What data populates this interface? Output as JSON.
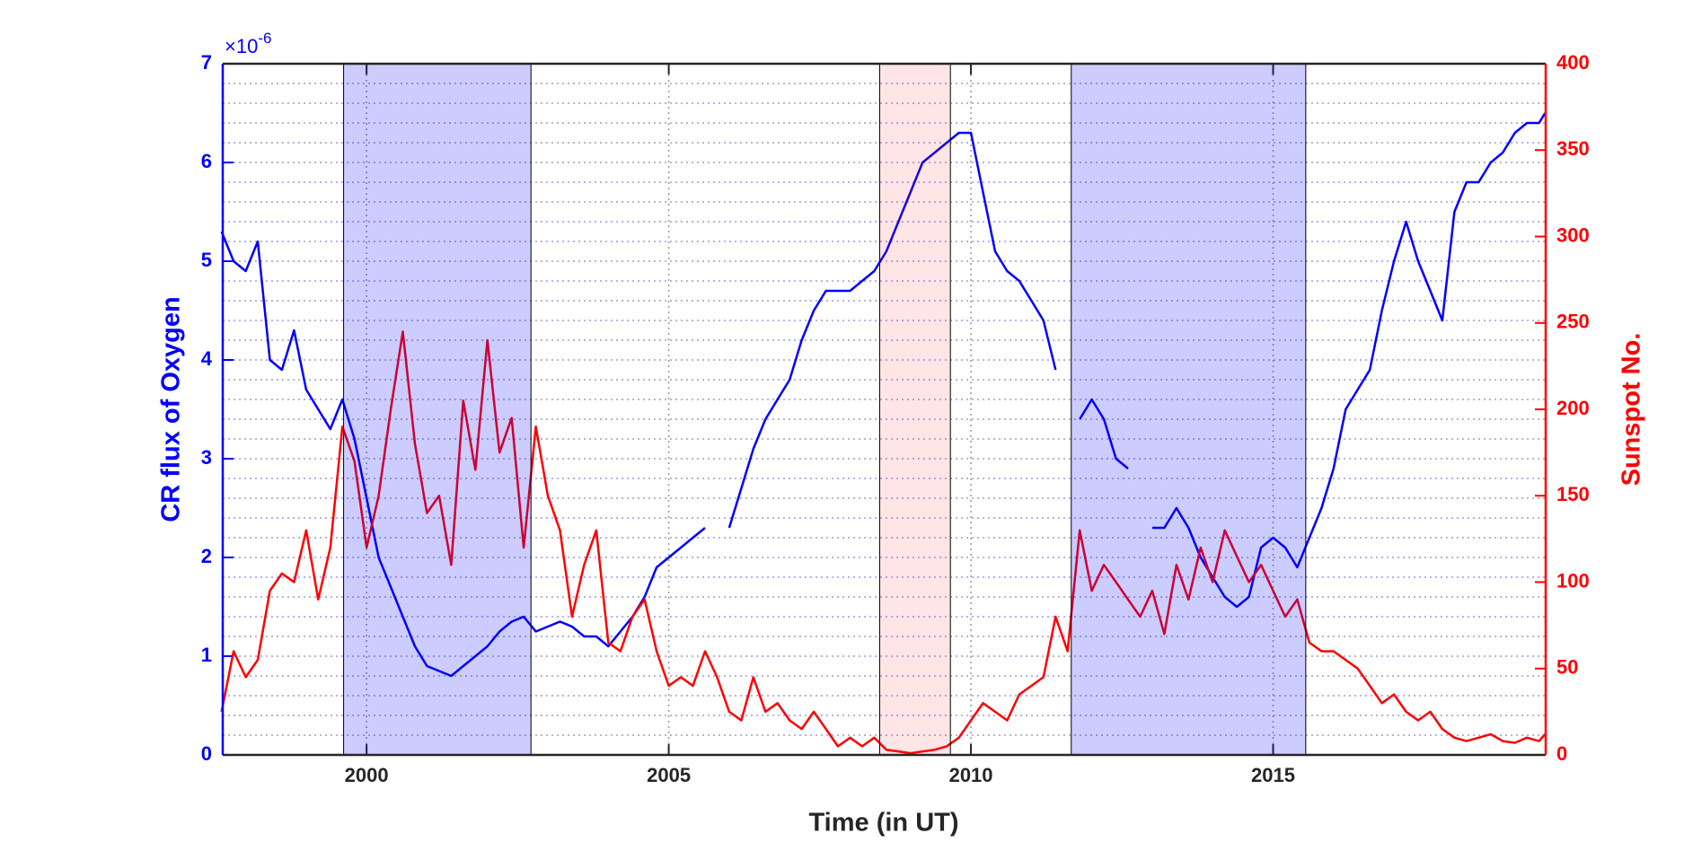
{
  "chart_data": {
    "type": "line",
    "xlabel": "Time (in UT)",
    "ylabel": "CR flux of Oxygen",
    "y2label": "Sunspot No.",
    "y_exponent": {
      "base": "×10",
      "power": "-6"
    },
    "xlim": [
      1997.62,
      2019.51
    ],
    "xticks": [
      2000,
      2005,
      2010,
      2015
    ],
    "ylim": [
      0,
      7
    ],
    "yticks": [
      0,
      1,
      2,
      3,
      4,
      5,
      6,
      7
    ],
    "y2lim": [
      0,
      400
    ],
    "y2ticks": [
      0,
      50,
      100,
      150,
      200,
      250,
      300,
      350,
      400
    ],
    "grid": true,
    "minor_grid": true,
    "shaded_regions": [
      {
        "start": 1999.62,
        "end": 2002.72,
        "color": "#0000ff"
      },
      {
        "start": 2008.49,
        "end": 2009.66,
        "color": "#ff0000"
      },
      {
        "start": 2011.66,
        "end": 2015.54,
        "color": "#0000ff"
      }
    ],
    "x": [
      1997.6,
      1997.8,
      1998.0,
      1998.2,
      1998.4,
      1998.6,
      1998.8,
      1999.0,
      1999.2,
      1999.4,
      1999.6,
      1999.8,
      2000.0,
      2000.2,
      2000.4,
      2000.6,
      2000.8,
      2001.0,
      2001.2,
      2001.4,
      2001.6,
      2001.8,
      2002.0,
      2002.2,
      2002.4,
      2002.6,
      2002.8,
      2003.0,
      2003.2,
      2003.4,
      2003.6,
      2003.8,
      2004.0,
      2004.2,
      2004.4,
      2004.6,
      2004.8,
      2005.0,
      2005.2,
      2005.4,
      2005.6,
      2005.8,
      2006.0,
      2006.2,
      2006.4,
      2006.6,
      2006.8,
      2007.0,
      2007.2,
      2007.4,
      2007.6,
      2007.8,
      2008.0,
      2008.2,
      2008.4,
      2008.6,
      2008.8,
      2009.0,
      2009.2,
      2009.4,
      2009.6,
      2009.8,
      2010.0,
      2010.2,
      2010.4,
      2010.6,
      2010.8,
      2011.0,
      2011.2,
      2011.4,
      2011.6,
      2011.8,
      2012.0,
      2012.2,
      2012.4,
      2012.6,
      2012.8,
      2013.0,
      2013.2,
      2013.4,
      2013.6,
      2013.8,
      2014.0,
      2014.2,
      2014.4,
      2014.6,
      2014.8,
      2015.0,
      2015.2,
      2015.4,
      2015.6,
      2015.8,
      2016.0,
      2016.2,
      2016.4,
      2016.6,
      2016.8,
      2017.0,
      2017.2,
      2017.4,
      2017.6,
      2017.8,
      2018.0,
      2018.2,
      2018.4,
      2018.6,
      2018.8,
      2019.0,
      2019.2,
      2019.4,
      2019.5
    ],
    "series": [
      {
        "name": "CR flux of Oxygen",
        "color": "#0000ff",
        "axis": "y",
        "values": [
          5.3,
          5.0,
          4.9,
          5.2,
          4.0,
          3.9,
          4.3,
          3.7,
          3.5,
          3.3,
          3.6,
          3.2,
          2.6,
          2.0,
          1.7,
          1.4,
          1.1,
          0.9,
          0.85,
          0.8,
          0.9,
          1.0,
          1.1,
          1.25,
          1.35,
          1.4,
          1.25,
          1.3,
          1.35,
          1.3,
          1.2,
          1.2,
          1.1,
          1.25,
          1.4,
          1.6,
          1.9,
          2.0,
          2.1,
          2.2,
          2.3,
          null,
          2.3,
          2.7,
          3.1,
          3.4,
          3.6,
          3.8,
          4.2,
          4.5,
          4.7,
          4.7,
          4.7,
          4.8,
          4.9,
          5.1,
          5.4,
          5.7,
          6.0,
          6.1,
          6.2,
          6.3,
          6.3,
          5.7,
          5.1,
          4.9,
          4.8,
          4.6,
          4.4,
          3.9,
          null,
          3.4,
          3.6,
          3.4,
          3.0,
          2.9,
          null,
          2.3,
          2.3,
          2.5,
          2.3,
          2.0,
          1.8,
          1.6,
          1.5,
          1.6,
          2.1,
          2.2,
          2.1,
          1.9,
          2.2,
          2.5,
          2.9,
          3.5,
          3.7,
          3.9,
          4.5,
          5.0,
          5.4,
          5.0,
          4.7,
          4.4,
          5.5,
          5.8,
          5.8,
          6.0,
          6.1,
          6.3,
          6.4,
          6.4,
          6.5
        ]
      },
      {
        "name": "Sunspot No.",
        "color": "#ff0000",
        "axis": "y2",
        "values": [
          25,
          60,
          45,
          55,
          95,
          105,
          100,
          130,
          90,
          120,
          190,
          170,
          120,
          150,
          200,
          245,
          180,
          140,
          150,
          110,
          205,
          165,
          240,
          175,
          195,
          120,
          190,
          150,
          130,
          80,
          110,
          130,
          65,
          60,
          80,
          90,
          60,
          40,
          45,
          40,
          60,
          45,
          25,
          20,
          45,
          25,
          30,
          20,
          15,
          25,
          15,
          5,
          10,
          5,
          10,
          3,
          2,
          1,
          2,
          3,
          5,
          10,
          20,
          30,
          25,
          20,
          35,
          40,
          45,
          80,
          60,
          130,
          95,
          110,
          100,
          90,
          80,
          95,
          70,
          110,
          90,
          120,
          100,
          130,
          115,
          100,
          110,
          95,
          80,
          90,
          65,
          60,
          60,
          55,
          50,
          40,
          30,
          35,
          25,
          20,
          25,
          15,
          10,
          8,
          10,
          12,
          8,
          7,
          10,
          8,
          12
        ]
      }
    ]
  }
}
